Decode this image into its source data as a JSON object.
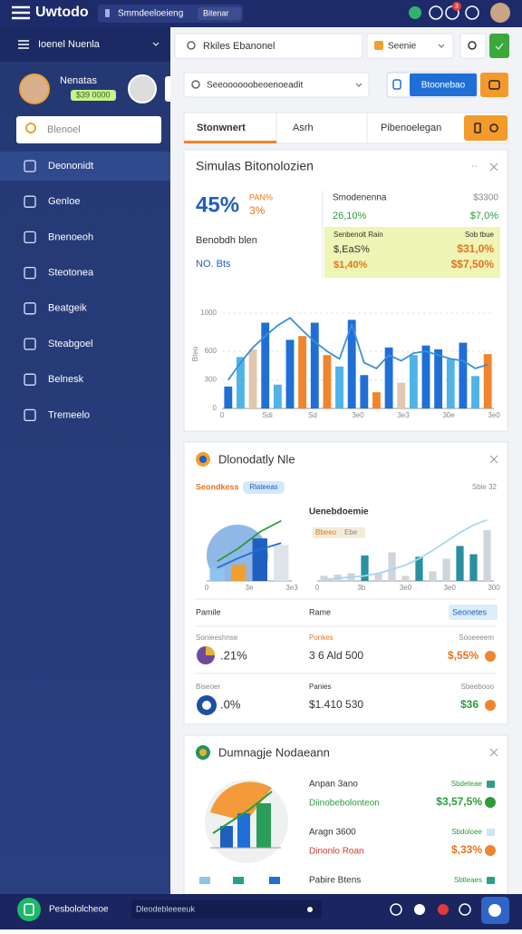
{
  "topbar": {
    "logo": "Uwtodo",
    "search": "Smmdeeloeieng",
    "badge": "Bitenar",
    "notifications": "3"
  },
  "sidebar": {
    "header": "Ioenel Nuenla",
    "profile_name": "Nenatas",
    "profile_balance": "$39 0000",
    "search": "Blenoel",
    "menu": [
      "Deononidt",
      "Genloe",
      "Bnenoeoh",
      "Steotonea",
      "Beatgeik",
      "Steabgoel",
      "Belnesk",
      "Tremeelo"
    ]
  },
  "toolbar": {
    "search": "Rkiles Ebanonel",
    "dropdown": "Seenie",
    "search2": "Seeoooooobeoenoeadit",
    "button": "Btoonebao"
  },
  "tabs": [
    "Stonwnert",
    "Asrh",
    "Pibenoelegan"
  ],
  "card1": {
    "title": "Simulas Bitonolozien",
    "stat": "45%",
    "stat_note": [
      "PAN%",
      "3%"
    ],
    "label1": "Benobdh blen",
    "label2": "NO. Bts",
    "summary": [
      [
        "Smodenenna",
        "$3300"
      ],
      [
        "26,10%",
        "$7,0%"
      ]
    ],
    "highlight": [
      [
        "Senbenolt Rain",
        "Sob tbue"
      ],
      [
        "$,EaS%",
        "$31,0%"
      ],
      [
        "$1,40%",
        "$$7,50%"
      ]
    ],
    "chart": {
      "y_label": "Bteo",
      "ylim": [
        0,
        1000
      ],
      "yticks": [
        0,
        300,
        600,
        1000
      ],
      "x_labels": [
        "0",
        "Sdi",
        "Sd",
        "3e0",
        "3e3",
        "30e",
        "3e0"
      ],
      "bars": [
        230,
        540,
        620,
        900,
        250,
        720,
        760,
        900,
        560,
        440,
        930,
        350,
        170,
        640,
        270,
        560,
        660,
        620,
        520,
        690,
        340,
        570
      ],
      "bar_colors": [
        "#1f6fd6",
        "#4fb3e8",
        "#e2c7b0",
        "#1f6fd6",
        "#4fb3e8",
        "#1f6fd6",
        "#f0852d",
        "#1f6fd6",
        "#f0852d",
        "#4fb3e8",
        "#1f6fd6",
        "#1f6fd6",
        "#f0852d",
        "#1f6fd6",
        "#e2c7b0",
        "#4fb3e8",
        "#1f6fd6",
        "#1f6fd6",
        "#4fb3e8",
        "#1f6fd6",
        "#4fb3e8",
        "#f0852d"
      ],
      "lines": [
        {
          "color": "#3a8fd8",
          "values": [
            300,
            480,
            640,
            760,
            870,
            950,
            820,
            700,
            600,
            520,
            880,
            480,
            420,
            560,
            500,
            580,
            600,
            560,
            520,
            500,
            420,
            460
          ]
        }
      ]
    }
  },
  "card2": {
    "title": "Dlonodatly Nle",
    "subtitle": "Seondkess",
    "pill": "Rlateeas",
    "meta": "Sbie 32",
    "left_chart": {
      "ylim": [
        0,
        100
      ],
      "x_labels": [
        "0",
        "3e",
        "3e3"
      ],
      "bars": [
        20,
        25,
        65,
        55
      ],
      "bar_colors": [
        "#8fc3ec",
        "#f0a030",
        "#1f5fc0",
        "#dfe3ea"
      ],
      "lines": [
        {
          "color": "#2a9d3a",
          "values": [
            30,
            50,
            75,
            92
          ]
        },
        {
          "color": "#1f6fd6",
          "values": [
            20,
            35,
            48,
            58
          ]
        }
      ]
    },
    "right_title": "Uenebdoemie",
    "right_pill": [
      "Bbeeo",
      "Ebe"
    ],
    "right_chart": {
      "ylim": [
        0,
        100
      ],
      "x_labels": [
        "0",
        "3b",
        "3e0",
        "3e0",
        "300"
      ],
      "bars": [
        8,
        10,
        12,
        40,
        12,
        45,
        8,
        38,
        15,
        35,
        55,
        42,
        80
      ],
      "bar_colors": [
        "#cfd5dd",
        "#cfd5dd",
        "#cfd5dd",
        "#2a8fa0",
        "#cfd5dd",
        "#cfd5dd",
        "#cfd5dd",
        "#2a8fa0",
        "#cfd5dd",
        "#cfd5dd",
        "#2a8fa0",
        "#2a8fa0",
        "#cfd5dd"
      ],
      "lines": [
        {
          "color": "#a8d6ee",
          "values": [
            2,
            4,
            6,
            8,
            12,
            18,
            25,
            35,
            48,
            62,
            76,
            88,
            96
          ]
        }
      ]
    },
    "table_header": [
      "Pamile",
      "Rame",
      "Seonetes"
    ],
    "rows": [
      {
        "tag": "Sonieeshnse",
        "value": ".21%",
        "mid_tag": "Ponkes",
        "mid_value": "3 6 Ald 500",
        "right_tag": "Sooeeeem",
        "right_value": "$,55%"
      },
      {
        "tag": "Biseoer",
        "value": ".0%",
        "mid_tag": "Panies",
        "mid_value": "$1.410 530",
        "right_tag": "Sbeebooo",
        "right_value": "$36"
      }
    ]
  },
  "card3": {
    "title": "Dumnagje Nodaeann",
    "rows": [
      {
        "label": "Anpan 3ano",
        "sub": "Diinobebolonteon",
        "tag": "Sbdeteae",
        "value": "$3,57,5%"
      },
      {
        "label": "Aragn 3600",
        "sub": "Dinonlo Roan",
        "tag": "Sbdoloee",
        "value": "$,33%"
      },
      {
        "label": "Pabire Btens",
        "tag": "Sbtleaes"
      }
    ]
  },
  "bottombar": {
    "label": "Pesbololcheoe",
    "input": "Dleodebleeeeuk"
  }
}
